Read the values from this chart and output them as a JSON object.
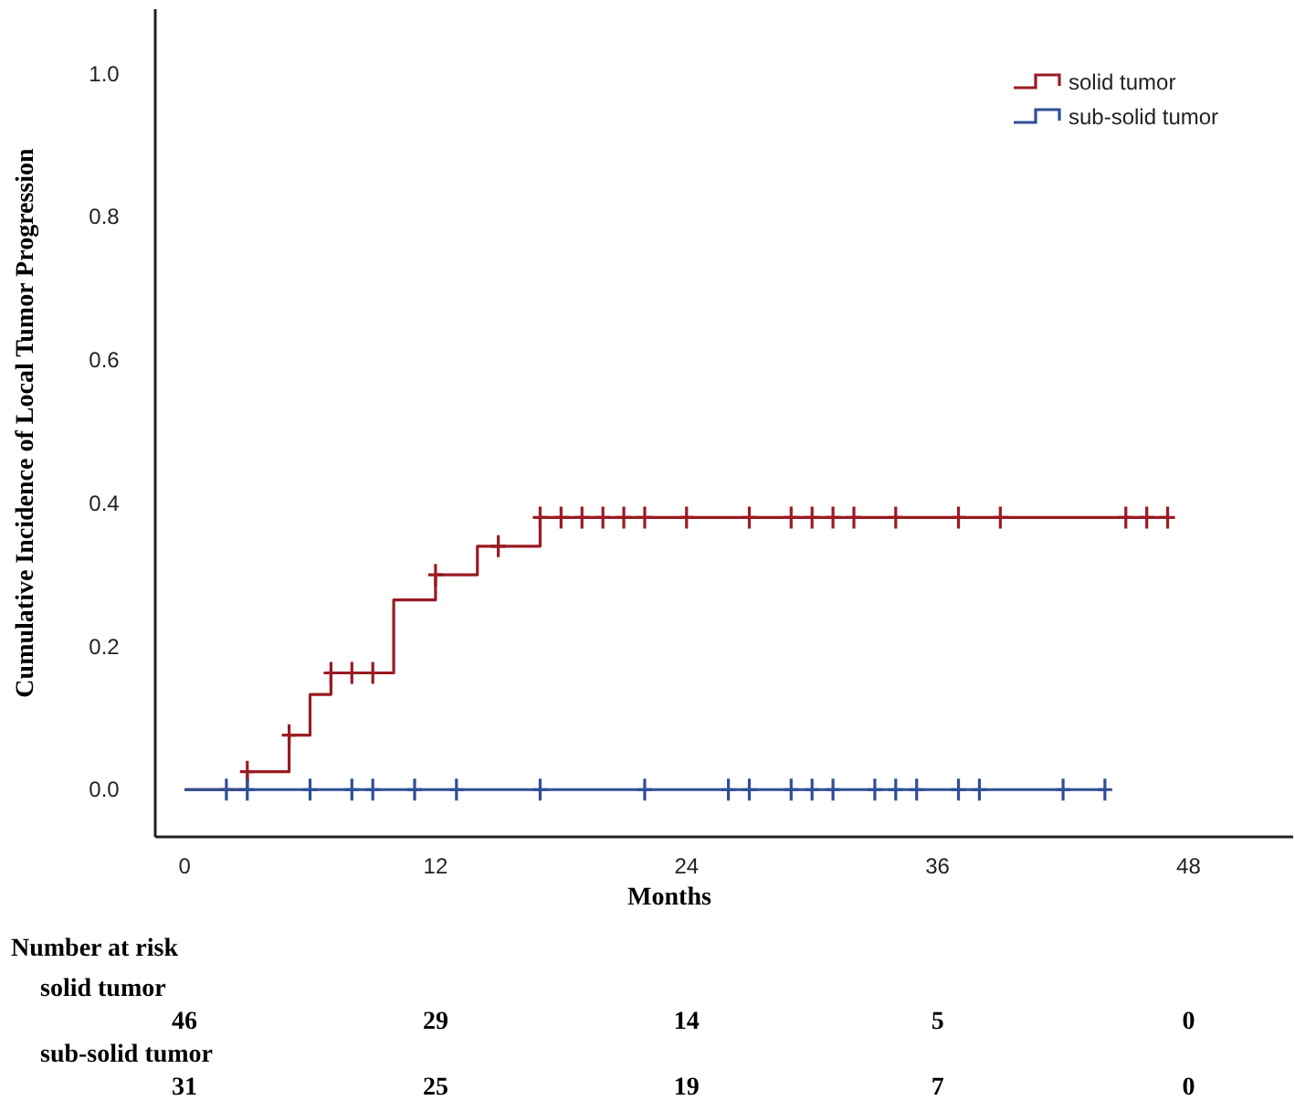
{
  "chart_data": {
    "type": "step",
    "ylabel": "Cumulative  Incidence  of  Local  Tumor  Progression",
    "xlabel": "Months",
    "xlim": [
      -1.4,
      53
    ],
    "ylim": [
      -0.066,
      1.09
    ],
    "xticks": [
      0,
      12,
      24,
      36,
      48
    ],
    "yticks": [
      {
        "value": 0,
        "label": "0.0"
      },
      {
        "value": 0.2,
        "label": "0.2"
      },
      {
        "value": 0.4,
        "label": "0.4"
      },
      {
        "value": 0.6,
        "label": "0.6"
      },
      {
        "value": 0.8,
        "label": "0.8"
      },
      {
        "value": 1,
        "label": "1.0"
      }
    ],
    "grid": false,
    "legend": "top right",
    "series": [
      {
        "name": "solid tumor",
        "color": "#9b1b22",
        "x": [
          0,
          3,
          5,
          6,
          7,
          10,
          12,
          14,
          17,
          47
        ],
        "values": [
          0,
          0.025,
          0.076,
          0.133,
          0.163,
          0.265,
          0.3,
          0.34,
          0.38,
          0.38
        ]
      },
      {
        "name": "sub-solid tumor",
        "color": "#2f4f96",
        "x": [
          0,
          44
        ],
        "values": [
          0,
          0
        ]
      },
      {
        "type": "scatter",
        "marker": "cross",
        "color": "#9b1b22",
        "x": [
          3,
          5,
          7,
          8,
          9,
          12,
          15,
          17,
          18,
          19,
          20,
          21,
          22,
          24,
          27,
          29,
          30,
          31,
          32,
          34,
          37,
          39,
          45,
          46,
          47
        ],
        "values": [
          0.025,
          0.076,
          0.163,
          0.163,
          0.163,
          0.3,
          0.34,
          0.38,
          0.38,
          0.38,
          0.38,
          0.38,
          0.38,
          0.38,
          0.38,
          0.38,
          0.38,
          0.38,
          0.38,
          0.38,
          0.38,
          0.38,
          0.38,
          0.38,
          0.38
        ]
      },
      {
        "type": "scatter",
        "marker": "cross",
        "color": "#2f4f96",
        "x": [
          2,
          3,
          6,
          8,
          9,
          11,
          13,
          17,
          22,
          26,
          27,
          29,
          30,
          31,
          33,
          34,
          35,
          37,
          38,
          42,
          44
        ],
        "values": [
          0,
          0,
          0,
          0,
          0,
          0,
          0,
          0,
          0,
          0,
          0,
          0,
          0,
          0,
          0,
          0,
          0,
          0,
          0,
          0,
          0
        ]
      }
    ],
    "annotations": [
      "Number at risk",
      "solid tumor",
      "46",
      "29",
      "14",
      "5",
      "0",
      "sub-solid tumor",
      "31",
      "25",
      "19",
      "7",
      "0"
    ]
  }
}
